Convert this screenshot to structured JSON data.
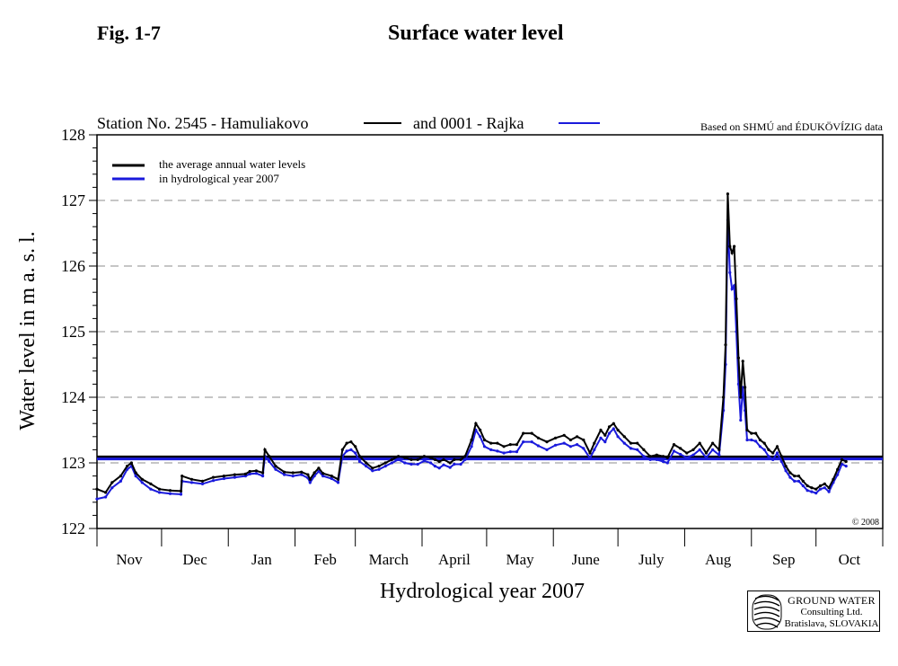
{
  "header": {
    "fig_label": "Fig. 1-7",
    "title": "Surface water level"
  },
  "legend": {
    "station_a": "Station No. 2545 - Hamuliakovo",
    "station_b": "and 0001 - Rajka",
    "average_line1": "the average annual water levels",
    "average_line2": "in hydrological year 2007"
  },
  "source_note": "Based on SHMÚ and ÉDUKÖVÍZIG data",
  "copyright": "© 2008",
  "logo": {
    "line1": "GROUND WATER",
    "line2": "Consulting Ltd.",
    "line3": "Bratislava, SLOVAKIA"
  },
  "colors": {
    "hamuliakovo": "#000000",
    "rajka": "#1a1adc",
    "grid": "#8c8c8c"
  },
  "chart_data": {
    "type": "line",
    "title": "Surface water level",
    "xlabel": "Hydrological year 2007",
    "ylabel": "Water level in m a. s. l.",
    "ylim": [
      122,
      128
    ],
    "yticks": [
      122,
      123,
      124,
      125,
      126,
      127,
      128
    ],
    "x_unit": "day of hydrological year (1 = 1 Nov 2006)",
    "xlim": [
      1,
      365
    ],
    "months": [
      "Nov",
      "Dec",
      "Jan",
      "Feb",
      "March",
      "April",
      "May",
      "June",
      "July",
      "Aug",
      "Sep",
      "Oct"
    ],
    "month_starts": [
      1,
      31,
      62,
      93,
      121,
      152,
      182,
      213,
      243,
      274,
      305,
      335,
      366
    ],
    "grid": "horizontal dashed at each whole metre",
    "averages": {
      "Hamuliakovo": 123.09,
      "Rajka": 123.06
    },
    "series": [
      {
        "name": "Station No. 2545 - Hamuliakovo",
        "points": [
          [
            1,
            122.6
          ],
          [
            5,
            122.55
          ],
          [
            8,
            122.7
          ],
          [
            12,
            122.8
          ],
          [
            15,
            122.95
          ],
          [
            17,
            123.0
          ],
          [
            19,
            122.85
          ],
          [
            22,
            122.75
          ],
          [
            26,
            122.68
          ],
          [
            30,
            122.6
          ],
          [
            35,
            122.58
          ],
          [
            40,
            122.57
          ],
          [
            40.5,
            122.8
          ],
          [
            45,
            122.75
          ],
          [
            50,
            122.72
          ],
          [
            55,
            122.78
          ],
          [
            60,
            122.8
          ],
          [
            65,
            122.82
          ],
          [
            70,
            122.83
          ],
          [
            72,
            122.87
          ],
          [
            75,
            122.88
          ],
          [
            78,
            122.85
          ],
          [
            79,
            123.2
          ],
          [
            81,
            123.1
          ],
          [
            84,
            122.95
          ],
          [
            88,
            122.86
          ],
          [
            92,
            122.85
          ],
          [
            96,
            122.86
          ],
          [
            99,
            122.82
          ],
          [
            100,
            122.75
          ],
          [
            102,
            122.85
          ],
          [
            104,
            122.92
          ],
          [
            106,
            122.84
          ],
          [
            110,
            122.8
          ],
          [
            113,
            122.75
          ],
          [
            115,
            123.2
          ],
          [
            117,
            123.3
          ],
          [
            119,
            123.32
          ],
          [
            121,
            123.25
          ],
          [
            123,
            123.1
          ],
          [
            126,
            123.0
          ],
          [
            129,
            122.92
          ],
          [
            132,
            122.95
          ],
          [
            135,
            123.0
          ],
          [
            138,
            123.05
          ],
          [
            141,
            123.1
          ],
          [
            144,
            123.08
          ],
          [
            147,
            123.05
          ],
          [
            150,
            123.05
          ],
          [
            153,
            123.1
          ],
          [
            156,
            123.08
          ],
          [
            158,
            123.05
          ],
          [
            160,
            123.02
          ],
          [
            162,
            123.05
          ],
          [
            165,
            123.0
          ],
          [
            167,
            123.05
          ],
          [
            170,
            123.05
          ],
          [
            172,
            123.1
          ],
          [
            175,
            123.35
          ],
          [
            177,
            123.6
          ],
          [
            179,
            123.5
          ],
          [
            181,
            123.35
          ],
          [
            184,
            123.3
          ],
          [
            187,
            123.3
          ],
          [
            190,
            123.25
          ],
          [
            193,
            123.28
          ],
          [
            196,
            123.28
          ],
          [
            199,
            123.45
          ],
          [
            203,
            123.45
          ],
          [
            206,
            123.38
          ],
          [
            210,
            123.32
          ],
          [
            214,
            123.38
          ],
          [
            218,
            123.42
          ],
          [
            221,
            123.35
          ],
          [
            224,
            123.4
          ],
          [
            227,
            123.35
          ],
          [
            230,
            123.15
          ],
          [
            232,
            123.3
          ],
          [
            235,
            123.5
          ],
          [
            237,
            123.42
          ],
          [
            239,
            123.55
          ],
          [
            241,
            123.6
          ],
          [
            243,
            123.5
          ],
          [
            246,
            123.4
          ],
          [
            249,
            123.3
          ],
          [
            252,
            123.3
          ],
          [
            255,
            123.2
          ],
          [
            258,
            123.1
          ],
          [
            261,
            123.12
          ],
          [
            264,
            123.1
          ],
          [
            266,
            123.08
          ],
          [
            269,
            123.28
          ],
          [
            272,
            123.22
          ],
          [
            275,
            123.15
          ],
          [
            278,
            123.2
          ],
          [
            281,
            123.3
          ],
          [
            284,
            123.15
          ],
          [
            287,
            123.3
          ],
          [
            290,
            123.2
          ],
          [
            292,
            124.0
          ],
          [
            293,
            124.8
          ],
          [
            294,
            127.1
          ],
          [
            295,
            126.3
          ],
          [
            296,
            126.2
          ],
          [
            297,
            126.3
          ],
          [
            298,
            125.5
          ],
          [
            299,
            124.6
          ],
          [
            300,
            124.0
          ],
          [
            301,
            124.55
          ],
          [
            302,
            124.15
          ],
          [
            303,
            123.5
          ],
          [
            305,
            123.45
          ],
          [
            307,
            123.45
          ],
          [
            309,
            123.35
          ],
          [
            311,
            123.3
          ],
          [
            313,
            123.2
          ],
          [
            315,
            123.15
          ],
          [
            317,
            123.25
          ],
          [
            319,
            123.1
          ],
          [
            321,
            122.95
          ],
          [
            323,
            122.85
          ],
          [
            325,
            122.8
          ],
          [
            327,
            122.8
          ],
          [
            329,
            122.72
          ],
          [
            331,
            122.65
          ],
          [
            333,
            122.62
          ],
          [
            335,
            122.6
          ],
          [
            337,
            122.65
          ],
          [
            339,
            122.68
          ],
          [
            341,
            122.62
          ],
          [
            343,
            122.75
          ],
          [
            345,
            122.9
          ],
          [
            347,
            123.05
          ],
          [
            349,
            123.02
          ]
        ]
      },
      {
        "name": "0001 - Rajka",
        "points": [
          [
            1,
            122.45
          ],
          [
            5,
            122.48
          ],
          [
            8,
            122.62
          ],
          [
            12,
            122.72
          ],
          [
            15,
            122.9
          ],
          [
            17,
            122.95
          ],
          [
            19,
            122.8
          ],
          [
            22,
            122.7
          ],
          [
            26,
            122.6
          ],
          [
            30,
            122.55
          ],
          [
            35,
            122.53
          ],
          [
            40,
            122.52
          ],
          [
            40.5,
            122.72
          ],
          [
            45,
            122.7
          ],
          [
            50,
            122.68
          ],
          [
            55,
            122.73
          ],
          [
            60,
            122.76
          ],
          [
            65,
            122.78
          ],
          [
            70,
            122.8
          ],
          [
            72,
            122.83
          ],
          [
            75,
            122.84
          ],
          [
            78,
            122.8
          ],
          [
            79,
            123.1
          ],
          [
            81,
            123.02
          ],
          [
            84,
            122.9
          ],
          [
            88,
            122.82
          ],
          [
            92,
            122.8
          ],
          [
            96,
            122.82
          ],
          [
            99,
            122.77
          ],
          [
            100,
            122.7
          ],
          [
            102,
            122.8
          ],
          [
            104,
            122.87
          ],
          [
            106,
            122.8
          ],
          [
            110,
            122.76
          ],
          [
            113,
            122.7
          ],
          [
            115,
            123.1
          ],
          [
            117,
            123.18
          ],
          [
            119,
            123.2
          ],
          [
            121,
            123.15
          ],
          [
            123,
            123.02
          ],
          [
            126,
            122.95
          ],
          [
            129,
            122.88
          ],
          [
            132,
            122.9
          ],
          [
            135,
            122.95
          ],
          [
            138,
            123.0
          ],
          [
            141,
            123.05
          ],
          [
            144,
            123.0
          ],
          [
            147,
            122.98
          ],
          [
            150,
            122.98
          ],
          [
            153,
            123.03
          ],
          [
            156,
            123.0
          ],
          [
            158,
            122.95
          ],
          [
            160,
            122.92
          ],
          [
            162,
            122.97
          ],
          [
            165,
            122.93
          ],
          [
            167,
            122.98
          ],
          [
            170,
            122.98
          ],
          [
            172,
            123.05
          ],
          [
            175,
            123.25
          ],
          [
            177,
            123.5
          ],
          [
            179,
            123.4
          ],
          [
            181,
            123.25
          ],
          [
            184,
            123.2
          ],
          [
            187,
            123.18
          ],
          [
            190,
            123.15
          ],
          [
            193,
            123.17
          ],
          [
            196,
            123.17
          ],
          [
            199,
            123.32
          ],
          [
            203,
            123.32
          ],
          [
            206,
            123.26
          ],
          [
            210,
            123.2
          ],
          [
            214,
            123.27
          ],
          [
            218,
            123.3
          ],
          [
            221,
            123.25
          ],
          [
            224,
            123.28
          ],
          [
            227,
            123.22
          ],
          [
            230,
            123.07
          ],
          [
            232,
            123.2
          ],
          [
            235,
            123.38
          ],
          [
            237,
            123.32
          ],
          [
            239,
            123.45
          ],
          [
            241,
            123.52
          ],
          [
            243,
            123.4
          ],
          [
            246,
            123.3
          ],
          [
            249,
            123.22
          ],
          [
            252,
            123.2
          ],
          [
            255,
            123.1
          ],
          [
            258,
            123.05
          ],
          [
            261,
            123.05
          ],
          [
            264,
            123.02
          ],
          [
            266,
            123.0
          ],
          [
            269,
            123.18
          ],
          [
            272,
            123.13
          ],
          [
            275,
            123.08
          ],
          [
            278,
            123.12
          ],
          [
            281,
            123.2
          ],
          [
            284,
            123.08
          ],
          [
            287,
            123.2
          ],
          [
            290,
            123.12
          ],
          [
            292,
            123.8
          ],
          [
            293,
            124.5
          ],
          [
            294,
            126.7
          ],
          [
            295,
            125.9
          ],
          [
            296,
            125.65
          ],
          [
            297,
            125.7
          ],
          [
            298,
            125.0
          ],
          [
            299,
            124.2
          ],
          [
            300,
            123.65
          ],
          [
            301,
            124.15
          ],
          [
            302,
            123.8
          ],
          [
            303,
            123.35
          ],
          [
            305,
            123.35
          ],
          [
            307,
            123.33
          ],
          [
            309,
            123.25
          ],
          [
            311,
            123.2
          ],
          [
            313,
            123.1
          ],
          [
            315,
            123.05
          ],
          [
            317,
            123.15
          ],
          [
            319,
            123.02
          ],
          [
            321,
            122.88
          ],
          [
            323,
            122.78
          ],
          [
            325,
            122.72
          ],
          [
            327,
            122.72
          ],
          [
            329,
            122.65
          ],
          [
            331,
            122.58
          ],
          [
            333,
            122.56
          ],
          [
            335,
            122.54
          ],
          [
            337,
            122.6
          ],
          [
            339,
            122.62
          ],
          [
            341,
            122.56
          ],
          [
            343,
            122.7
          ],
          [
            345,
            122.82
          ],
          [
            347,
            122.98
          ],
          [
            349,
            122.95
          ]
        ]
      }
    ]
  }
}
